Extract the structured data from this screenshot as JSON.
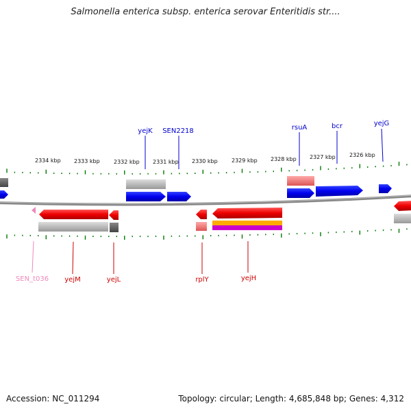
{
  "title": "Salmonella enterica subsp. enterica serovar Enteritidis str....",
  "footer": {
    "accession": "Accession: NC_011294",
    "stats": "Topology: circular; Length: 4,685,848 bp; Genes: 4,312"
  },
  "ruler": {
    "ticks": [
      "2334 kbp",
      "2333 kbp",
      "2332 kbp",
      "2331 kbp",
      "2330 kbp",
      "2329 kbp",
      "2328 kbp",
      "2327 kbp",
      "2326 kbp"
    ]
  },
  "genes": {
    "top": [
      {
        "name": "yejK",
        "color": "#0000cc"
      },
      {
        "name": "SEN2218",
        "color": "#0000cc"
      },
      {
        "name": "rsuA",
        "color": "#0000cc"
      },
      {
        "name": "bcr",
        "color": "#0000cc"
      },
      {
        "name": "yejG",
        "color": "#0000cc"
      }
    ],
    "bottom": [
      {
        "name": "SEN_t036",
        "color": "#ee88bb"
      },
      {
        "name": "yejM",
        "color": "#cc0000"
      },
      {
        "name": "yejL",
        "color": "#cc0000"
      },
      {
        "name": "rplY",
        "color": "#cc0000"
      },
      {
        "name": "yejH",
        "color": "#cc0000"
      }
    ]
  },
  "colors": {
    "forward_cds": "#0000ee",
    "reverse_cds": "#ee0000",
    "gene_gray": "#b8b8b8",
    "trna": "#ee88bb",
    "rrna_orange": "#ffaa00",
    "misc_magenta": "#cc00cc",
    "tick_green": "#007700",
    "backbone": "#888888"
  }
}
